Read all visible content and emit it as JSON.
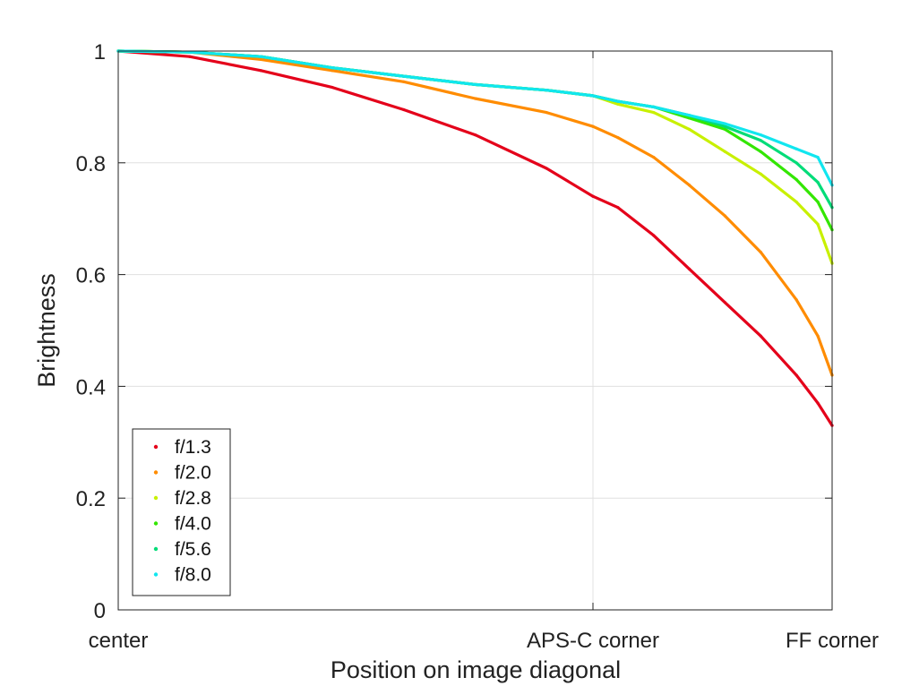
{
  "chart_data": {
    "type": "scatter",
    "title": "",
    "xlabel": "Position on image diagonal",
    "ylabel": "Brightness",
    "xlim": [
      0,
      1
    ],
    "ylim": [
      0,
      1
    ],
    "grid": true,
    "legend_position": "bottom-left",
    "x_ticks": [
      {
        "value": 0.0,
        "label": "center"
      },
      {
        "value": 0.665,
        "label": "APS-C corner"
      },
      {
        "value": 1.0,
        "label": "FF corner"
      }
    ],
    "y_ticks": [
      {
        "value": 0,
        "label": "0"
      },
      {
        "value": 0.2,
        "label": "0.2"
      },
      {
        "value": 0.4,
        "label": "0.4"
      },
      {
        "value": 0.6,
        "label": "0.6"
      },
      {
        "value": 0.8,
        "label": "0.8"
      },
      {
        "value": 1.0,
        "label": "1"
      }
    ],
    "x": [
      0,
      0.1,
      0.2,
      0.3,
      0.4,
      0.5,
      0.6,
      0.665,
      0.7,
      0.75,
      0.8,
      0.85,
      0.9,
      0.95,
      0.98,
      1.0
    ],
    "series": [
      {
        "name": "f/1.3",
        "color": "#e4001a",
        "values": [
          1.0,
          0.99,
          0.965,
          0.935,
          0.895,
          0.85,
          0.79,
          0.74,
          0.72,
          0.67,
          0.61,
          0.55,
          0.49,
          0.42,
          0.37,
          0.33
        ]
      },
      {
        "name": "f/2.0",
        "color": "#ff8c00",
        "values": [
          1.0,
          0.998,
          0.985,
          0.965,
          0.945,
          0.915,
          0.89,
          0.865,
          0.845,
          0.81,
          0.76,
          0.705,
          0.64,
          0.555,
          0.49,
          0.42
        ]
      },
      {
        "name": "f/2.8",
        "color": "#c8f000",
        "values": [
          1.0,
          0.998,
          0.99,
          0.97,
          0.955,
          0.94,
          0.93,
          0.92,
          0.905,
          0.89,
          0.86,
          0.82,
          0.78,
          0.73,
          0.69,
          0.62
        ]
      },
      {
        "name": "f/4.0",
        "color": "#33e600",
        "values": [
          1.0,
          0.998,
          0.99,
          0.97,
          0.955,
          0.94,
          0.93,
          0.92,
          0.91,
          0.9,
          0.88,
          0.86,
          0.82,
          0.77,
          0.73,
          0.68
        ]
      },
      {
        "name": "f/5.6",
        "color": "#00dc78",
        "values": [
          1.0,
          0.998,
          0.99,
          0.97,
          0.955,
          0.94,
          0.93,
          0.92,
          0.91,
          0.9,
          0.885,
          0.865,
          0.84,
          0.8,
          0.765,
          0.72
        ]
      },
      {
        "name": "f/8.0",
        "color": "#11e6ef",
        "values": [
          1.0,
          0.998,
          0.99,
          0.97,
          0.955,
          0.94,
          0.93,
          0.92,
          0.91,
          0.9,
          0.885,
          0.87,
          0.85,
          0.825,
          0.81,
          0.76
        ]
      }
    ]
  }
}
